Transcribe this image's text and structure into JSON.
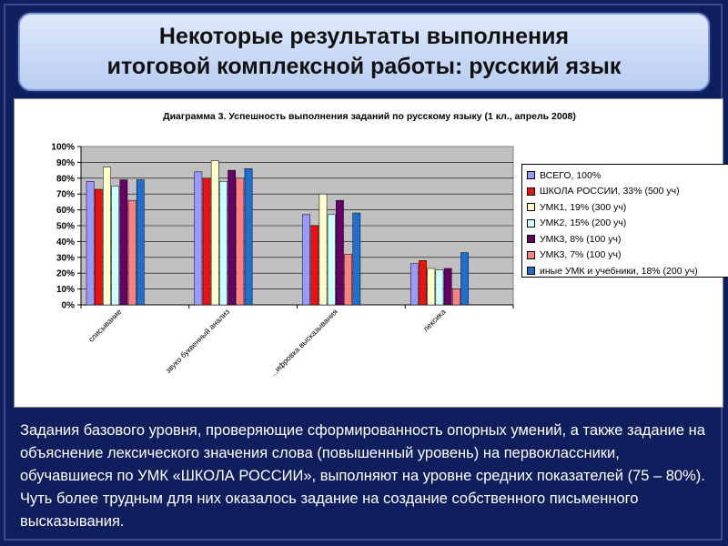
{
  "slide": {
    "title_lines": [
      "Некоторые результаты выполнения",
      "итоговой комплексной работы: русский язык"
    ],
    "body_text": "Задания базового уровня, проверяющие сформированность опорных умений, а также задание на объяснение лексического значения слова (повышенный уровень) на  первоклассники, обучавшиеся по УМК «ШКОЛА РОССИИ», выполняют на уровне средних показателей (75 – 80%). Чуть более трудным для них оказалось задание на создание собственного письменного высказывания."
  },
  "chart_data": {
    "type": "bar",
    "title": "Диаграмма 3. Успешность выполнения заданий по русскому языку (1 кл., апрель 2008)",
    "ylim": [
      0,
      100
    ],
    "y_ticks": [
      "0%",
      "10%",
      "20%",
      "30%",
      "40%",
      "50%",
      "60%",
      "70%",
      "80%",
      "90%",
      "100%"
    ],
    "grid": true,
    "legend_position": "right",
    "categories": [
      "списывание",
      "звуко буквенный анализ",
      "...ифровка высказывания",
      "лексика"
    ],
    "series": [
      {
        "name": "ВСЕГО, 100%",
        "color": "#9999ff",
        "values": [
          78,
          84,
          57,
          26
        ]
      },
      {
        "name": "ШКОЛА РОССИИ, 33% (500 уч)",
        "color": "#ee1111",
        "values": [
          73,
          80,
          50,
          28
        ]
      },
      {
        "name": "УМК1, 19% (300 уч)",
        "color": "#ffffcc",
        "values": [
          87,
          91,
          70,
          23
        ]
      },
      {
        "name": "УМК2, 15% (200 уч)",
        "color": "#ccffff",
        "values": [
          75,
          78,
          57,
          22
        ]
      },
      {
        "name": "УМК3,  8% (100 уч)",
        "color": "#660066",
        "values": [
          79,
          85,
          66,
          23
        ]
      },
      {
        "name": "УМК3,  7% (100 уч)",
        "color": "#ff8080",
        "values": [
          66,
          80,
          32,
          10
        ]
      },
      {
        "name": "иные УМК и учебники,  18% (200 уч)",
        "color": "#1f6fd0",
        "values": [
          79,
          86,
          58,
          33
        ]
      }
    ]
  }
}
